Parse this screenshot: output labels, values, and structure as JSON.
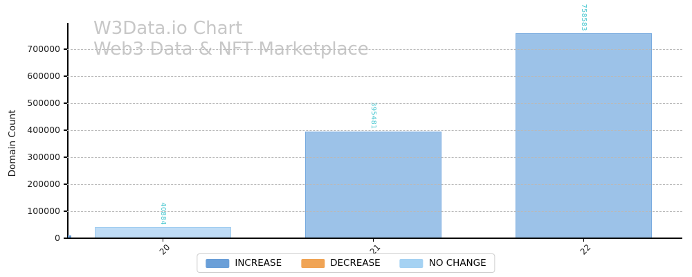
{
  "header": {
    "title_line1": "W3Data.io Chart",
    "title_line2": "Web3 Data & NFT Marketplace"
  },
  "chart_data": {
    "type": "bar",
    "title": "W3Data.io Chart",
    "subtitle": "Web3 Data & NFT Marketplace",
    "categories": [
      "20",
      "21",
      "22"
    ],
    "values": [
      40884,
      395481,
      758583
    ],
    "bar_series": [
      "NO CHANGE",
      "INCREASE",
      "INCREASE"
    ],
    "annotations": [
      "40884",
      "395481",
      "758583"
    ],
    "annotation_color": "#44c6cf",
    "xlabel": "",
    "ylabel": "Domain Count",
    "yticks": [
      0,
      100000,
      200000,
      300000,
      400000,
      500000,
      600000,
      700000
    ],
    "ylim": [
      0,
      797000
    ],
    "grid": "horizontal-dashed",
    "legend_position": "bottom-center",
    "legend": [
      {
        "label": "INCREASE",
        "color": "#6a9fd8"
      },
      {
        "label": "DECREASE",
        "color": "#f0a455"
      },
      {
        "label": "NO CHANGE",
        "color": "#a5d2f3"
      }
    ],
    "series_colors": {
      "INCREASE": {
        "fill": "#9cc2e8",
        "edge": "#79abdf"
      },
      "DECREASE": {
        "fill": "#f5c08a",
        "edge": "#eda75f"
      },
      "NO CHANGE": {
        "fill": "#bfdcf6",
        "edge": "#a0ccf0"
      }
    }
  },
  "colors": {
    "title_text": "#c7c7c7",
    "axis_text": "#1a1a1a",
    "grid_line": "#b9b9b9",
    "spine": "#000000",
    "legend_border": "#cfcfcf",
    "background": "#ffffff"
  }
}
